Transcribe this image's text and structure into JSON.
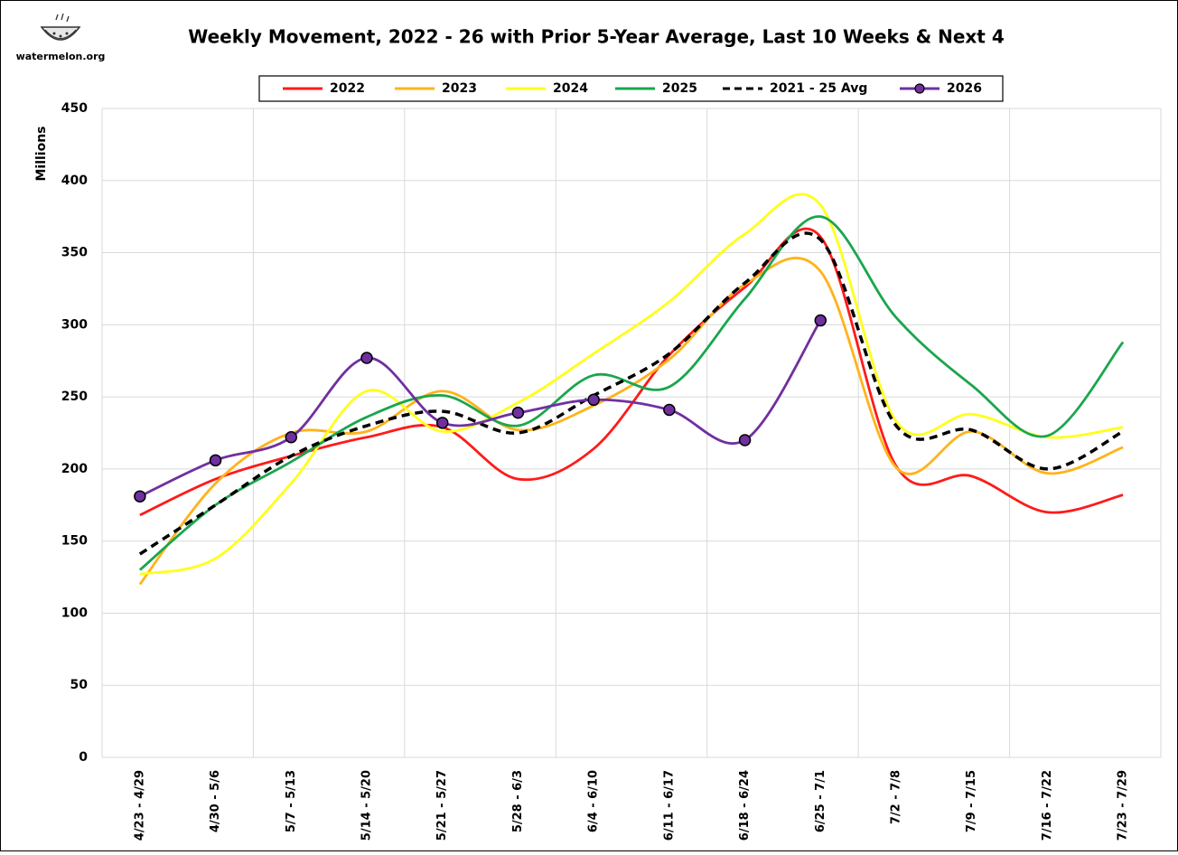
{
  "logo": "watermelon.org",
  "chart_data": {
    "type": "line",
    "title": "Weekly Movement, 2022 - 26 with Prior 5-Year Average, Last 10 Weeks & Next 4",
    "y_label": "Millions",
    "categories": [
      "4/23 - 4/29",
      "4/30 - 5/6",
      "5/7 - 5/13",
      "5/14 - 5/20",
      "5/21 - 5/27",
      "5/28 - 6/3",
      "6/4 - 6/10",
      "6/11 - 6/17",
      "6/18 - 6/24",
      "6/25 - 7/1",
      "7/2 - 7/8",
      "7/9 - 7/15",
      "7/16 - 7/22",
      "7/23 - 7/29"
    ],
    "ylim": [
      0,
      450
    ],
    "yticks": [
      0,
      50,
      100,
      150,
      200,
      250,
      300,
      350,
      400,
      450
    ],
    "grid": true,
    "legend": "top",
    "series": [
      {
        "name": "2022",
        "color": "#ff1a1a",
        "values": [
          168,
          193,
          209,
          222,
          229,
          193,
          214,
          279,
          326,
          361,
          202,
          195,
          170,
          182
        ]
      },
      {
        "name": "2023",
        "color": "#ffb31a",
        "values": [
          120,
          190,
          225,
          226,
          254,
          227,
          244,
          276,
          328,
          337,
          201,
          226,
          197,
          215
        ]
      },
      {
        "name": "2024",
        "color": "#ffff1a",
        "values": [
          127,
          138,
          190,
          254,
          226,
          246,
          280,
          316,
          363,
          383,
          233,
          238,
          222,
          229
        ]
      },
      {
        "name": "2025",
        "color": "#1aa64d",
        "values": [
          130,
          175,
          205,
          236,
          251,
          230,
          265,
          257,
          318,
          375,
          305,
          258,
          223,
          288
        ]
      },
      {
        "name": "2021 - 25 Avg",
        "color": "#000000",
        "line_style": "dashed",
        "values": [
          141,
          175,
          209,
          230,
          240,
          225,
          251,
          280,
          329,
          359,
          230,
          227,
          200,
          226
        ]
      },
      {
        "name": "2026",
        "color": "#7030a0",
        "marker": "circle",
        "values": [
          181,
          206,
          222,
          277,
          232,
          239,
          248,
          241,
          220,
          303,
          null,
          null,
          null,
          null
        ]
      }
    ]
  }
}
